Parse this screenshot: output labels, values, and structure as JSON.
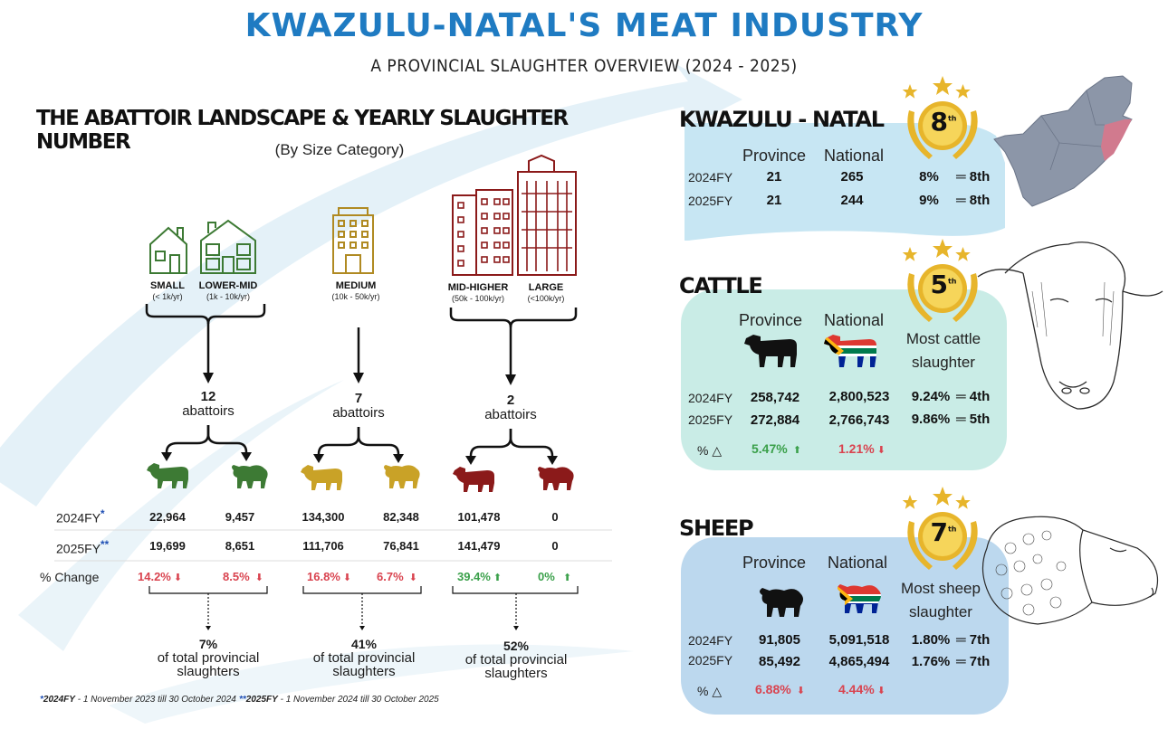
{
  "header": {
    "title": "KWAZULU-NATAL'S MEAT INDUSTRY",
    "subtitle": "A PROVINCIAL SLAUGHTER OVERVIEW (2024 - 2025)"
  },
  "landscape": {
    "title": "THE ABATTOIR LANDSCAPE & YEARLY SLAUGHTER NUMBER",
    "subtitle": "(By Size Category)",
    "categories": [
      {
        "label": "SMALL",
        "range": "(< 1k/yr)"
      },
      {
        "label": "LOWER-MID",
        "range": "(1k - 10k/yr)"
      },
      {
        "label": "MEDIUM",
        "range": "(10k - 50k/yr)"
      },
      {
        "label": "MID-HIGHER",
        "range": "(50k - 100k/yr)"
      },
      {
        "label": "LARGE",
        "range": "(<100k/yr)"
      }
    ],
    "groups": [
      {
        "count": "12",
        "count_label": "abattoirs",
        "share_pct": "7%",
        "share_label_1": "of total provincial",
        "share_label_2": "slaughters"
      },
      {
        "count": "7",
        "count_label": "abattoirs",
        "share_pct": "41%",
        "share_label_1": "of total provincial",
        "share_label_2": "slaughters"
      },
      {
        "count": "2",
        "count_label": "abattoirs",
        "share_pct": "52%",
        "share_label_1": "of total provincial",
        "share_label_2": "slaughters"
      }
    ],
    "row_labels": {
      "fy2024": "2024FY",
      "fy2025": "2025FY",
      "change": "% Change"
    },
    "fy2024_mark": "*",
    "fy2025_mark": "**",
    "values_2024": [
      "22,964",
      "9,457",
      "134,300",
      "82,348",
      "101,478",
      "0"
    ],
    "values_2025": [
      "19,699",
      "8,651",
      "111,706",
      "76,841",
      "141,479",
      "0"
    ],
    "changes": [
      {
        "value": "14.2%",
        "dir": "down"
      },
      {
        "value": "8.5%",
        "dir": "down"
      },
      {
        "value": "16.8%",
        "dir": "down"
      },
      {
        "value": "6.7%",
        "dir": "down"
      },
      {
        "value": "39.4%",
        "dir": "up"
      },
      {
        "value": "0%",
        "dir": "up"
      }
    ]
  },
  "footnotes": {
    "mark1": "*",
    "fy1": "2024FY",
    "fy1_text": " - 1 November 2023 till 30 October 2024",
    "mark2": "**",
    "fy2": "2025FY",
    "fy2_text": " - 1 November 2024 till 30 October 2025"
  },
  "kzn": {
    "title": "KWAZULU - NATAL",
    "rank": "8",
    "rank_sup": "th",
    "head_province": "Province",
    "head_national": "National",
    "rows": [
      {
        "fy": "2024FY",
        "province": "21",
        "national": "265",
        "pct": "8%",
        "rank": "8th"
      },
      {
        "fy": "2025FY",
        "province": "21",
        "national": "244",
        "pct": "9%",
        "rank": "8th"
      }
    ]
  },
  "cattle": {
    "title": "CATTLE",
    "rank": "5",
    "rank_sup": "th",
    "head_province": "Province",
    "head_national": "National",
    "most_1": "Most cattle",
    "most_2": "slaughter",
    "rows": [
      {
        "fy": "2024FY",
        "province": "258,742",
        "national": "2,800,523",
        "pct": "9.24%",
        "rank": "4th"
      },
      {
        "fy": "2025FY",
        "province": "272,884",
        "national": "2,766,743",
        "pct": "9.86%",
        "rank": "5th"
      }
    ],
    "delta_label": "%",
    "delta_province": "5.47%",
    "delta_national": "1.21%"
  },
  "sheep": {
    "title": "SHEEP",
    "rank": "7",
    "rank_sup": "th",
    "head_province": "Province",
    "head_national": "National",
    "most_1": "Most sheep",
    "most_2": "slaughter",
    "rows": [
      {
        "fy": "2024FY",
        "province": "91,805",
        "national": "5,091,518",
        "pct": "1.80%",
        "rank": "7th"
      },
      {
        "fy": "2025FY",
        "province": "85,492",
        "national": "4,865,494",
        "pct": "1.76%",
        "rank": "7th"
      }
    ],
    "delta_label": "%",
    "delta_province": "6.88%",
    "delta_national": "4.44%"
  },
  "colors": {
    "title_blue": "#1f7bc2",
    "green": "#3d7a34",
    "gold": "#c9a227",
    "maroon": "#8b1a1a",
    "red": "#d9434f",
    "up_green": "#3aa04a",
    "kzn_panel": "#c7e6f3",
    "cattle_panel": "#c9ece6",
    "sheep_panel": "#bcd8ee",
    "map_grey": "#8c96a8",
    "map_kzn": "#d17a8e"
  }
}
